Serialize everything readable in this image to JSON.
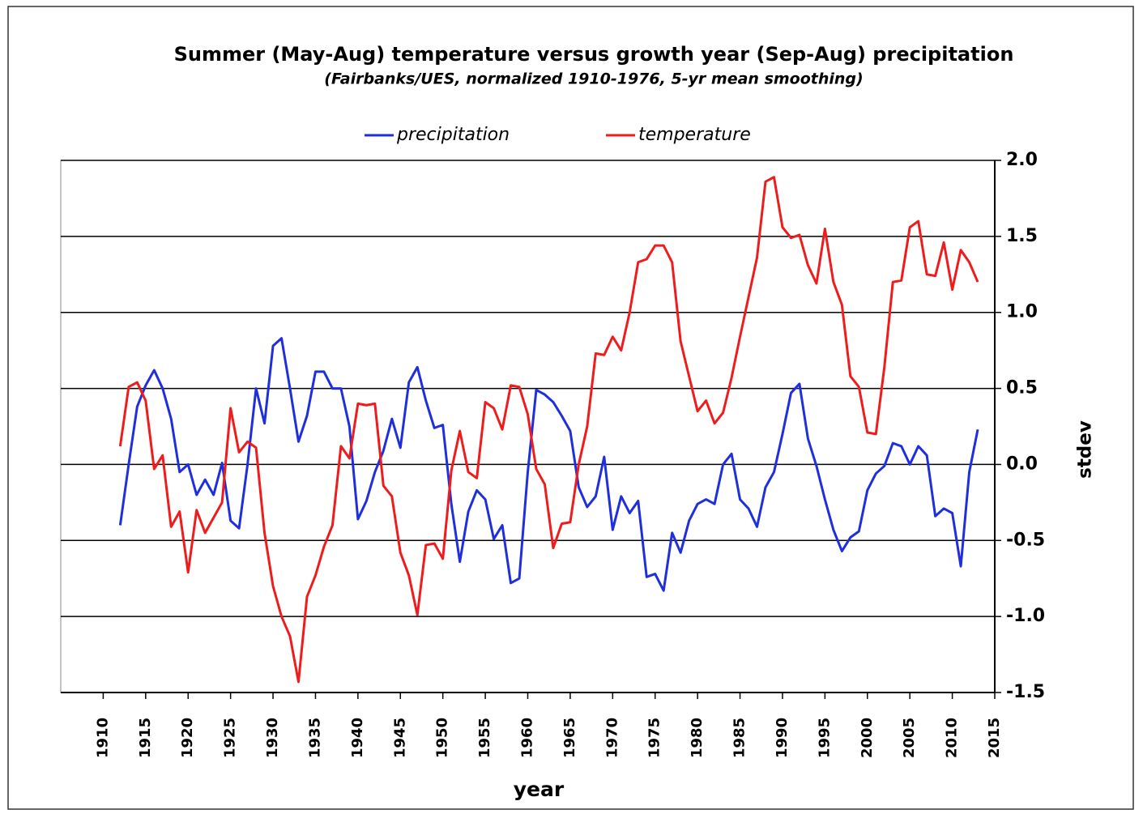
{
  "chart_data": {
    "type": "line",
    "title": "Summer (May-Aug) temperature  versus growth year (Sep-Aug) precipitation",
    "subtitle": "(Fairbanks/UES, normalized 1910-1976, 5-yr mean smoothing)",
    "x_label": "year",
    "y_label": "stdev",
    "legend": "top",
    "grid": true,
    "xlim": [
      1905,
      2015
    ],
    "xticks": [
      1910,
      1915,
      1920,
      1925,
      1930,
      1935,
      1940,
      1945,
      1950,
      1955,
      1960,
      1965,
      1970,
      1975,
      1980,
      1985,
      1990,
      1995,
      2000,
      2005,
      2010,
      2015
    ],
    "ylim": [
      -1.5,
      2.0
    ],
    "yticks": [
      {
        "value": 2.0,
        "label": "2.0"
      },
      1.5,
      {
        "value": 1.0,
        "label": "1.0"
      },
      0.5,
      {
        "value": 0.0,
        "label": "0.0"
      },
      -0.5,
      {
        "value": -1.0,
        "label": "-1.0"
      },
      -1.5
    ],
    "x": [
      1912,
      1913,
      1914,
      1915,
      1916,
      1917,
      1918,
      1919,
      1920,
      1921,
      1922,
      1923,
      1924,
      1925,
      1926,
      1927,
      1928,
      1929,
      1930,
      1931,
      1932,
      1933,
      1934,
      1935,
      1936,
      1937,
      1938,
      1939,
      1940,
      1941,
      1942,
      1943,
      1944,
      1945,
      1946,
      1947,
      1948,
      1949,
      1950,
      1951,
      1952,
      1953,
      1954,
      1955,
      1956,
      1957,
      1958,
      1959,
      1960,
      1961,
      1962,
      1963,
      1964,
      1965,
      1966,
      1967,
      1968,
      1969,
      1970,
      1971,
      1972,
      1973,
      1974,
      1975,
      1976,
      1977,
      1978,
      1979,
      1980,
      1981,
      1982,
      1983,
      1984,
      1985,
      1986,
      1987,
      1988,
      1989,
      1990,
      1991,
      1992,
      1993,
      1994,
      1995,
      1996,
      1997,
      1998,
      1999,
      2000,
      2001,
      2002,
      2003,
      2004,
      2005,
      2006,
      2007,
      2008,
      2009,
      2010,
      2011,
      2012,
      2013
    ],
    "series": [
      {
        "name": "precipitation",
        "color": "#1f2fdc",
        "values": [
          -0.4,
          0.0,
          0.38,
          0.52,
          0.62,
          0.5,
          0.3,
          -0.05,
          0.0,
          -0.2,
          -0.1,
          -0.2,
          0.01,
          -0.37,
          -0.42,
          0.0,
          0.5,
          0.27,
          0.78,
          0.83,
          0.5,
          0.15,
          0.32,
          0.61,
          0.61,
          0.5,
          0.5,
          0.25,
          -0.36,
          -0.24,
          -0.05,
          0.09,
          0.3,
          0.11,
          0.54,
          0.64,
          0.42,
          0.24,
          0.26,
          -0.26,
          -0.64,
          -0.31,
          -0.17,
          -0.23,
          -0.49,
          -0.4,
          -0.78,
          -0.75,
          -0.05,
          0.49,
          0.46,
          0.41,
          0.32,
          0.22,
          -0.15,
          -0.28,
          -0.21,
          0.05,
          -0.43,
          -0.21,
          -0.32,
          -0.24,
          -0.74,
          -0.72,
          -0.83,
          -0.45,
          -0.58,
          -0.37,
          -0.26,
          -0.23,
          -0.26,
          0.0,
          0.07,
          -0.23,
          -0.29,
          -0.41,
          -0.15,
          -0.05,
          0.2,
          0.47,
          0.53,
          0.17,
          -0.01,
          -0.23,
          -0.43,
          -0.57,
          -0.48,
          -0.44,
          -0.17,
          -0.06,
          -0.01,
          0.14,
          0.12,
          0.0,
          0.12,
          0.06,
          -0.34,
          -0.29,
          -0.32,
          -0.67,
          -0.05,
          0.23
        ]
      },
      {
        "name": "temperature",
        "color": "#ee1c1c",
        "values": [
          0.12,
          0.51,
          0.54,
          0.42,
          -0.03,
          0.06,
          -0.41,
          -0.31,
          -0.71,
          -0.3,
          -0.45,
          -0.35,
          -0.25,
          0.37,
          0.08,
          0.15,
          0.11,
          -0.45,
          -0.8,
          -1.0,
          -1.13,
          -1.43,
          -0.87,
          -0.73,
          -0.54,
          -0.4,
          0.12,
          0.04,
          0.4,
          0.39,
          0.4,
          -0.14,
          -0.21,
          -0.58,
          -0.73,
          -0.99,
          -0.53,
          -0.52,
          -0.62,
          -0.04,
          0.22,
          -0.05,
          -0.09,
          0.41,
          0.37,
          0.23,
          0.52,
          0.51,
          0.33,
          -0.03,
          -0.13,
          -0.55,
          -0.39,
          -0.38,
          0.0,
          0.25,
          0.73,
          0.72,
          0.84,
          0.75,
          1.0,
          1.33,
          1.35,
          1.44,
          1.44,
          1.33,
          0.81,
          0.58,
          0.35,
          0.42,
          0.27,
          0.34,
          0.57,
          0.84,
          1.1,
          1.36,
          1.86,
          1.89,
          1.56,
          1.49,
          1.51,
          1.31,
          1.19,
          1.55,
          1.2,
          1.05,
          0.58,
          0.51,
          0.21,
          0.2,
          0.64,
          1.2,
          1.21,
          1.56,
          1.6,
          1.25,
          1.24,
          1.46,
          1.15,
          1.41,
          1.33,
          1.2
        ]
      }
    ]
  }
}
